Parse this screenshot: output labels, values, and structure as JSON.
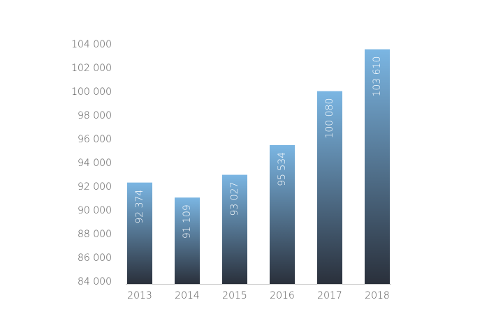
{
  "chart_data": {
    "type": "bar",
    "categories": [
      "2013",
      "2014",
      "2015",
      "2016",
      "2017",
      "2018"
    ],
    "values": [
      92374,
      91109,
      93027,
      95534,
      100080,
      103610
    ],
    "value_labels": [
      "92 374",
      "91 109",
      "93 027",
      "95 534",
      "100 080",
      "103 610"
    ],
    "gradient": [
      "#7bb6e3",
      "#2a303b"
    ],
    "ylim": [
      84000,
      104000
    ],
    "yticks": [
      {
        "value": 84000,
        "label": "84 000"
      },
      {
        "value": 86000,
        "label": "86 000"
      },
      {
        "value": 88000,
        "label": "88 000"
      },
      {
        "value": 90000,
        "label": "90 000"
      },
      {
        "value": 92000,
        "label": "92 000"
      },
      {
        "value": 94000,
        "label": "94 000"
      },
      {
        "value": 96000,
        "label": "96 000"
      },
      {
        "value": 98000,
        "label": "98 000"
      },
      {
        "value": 100000,
        "label": "100 000"
      },
      {
        "value": 102000,
        "label": "102 000"
      },
      {
        "value": 104000,
        "label": "104 000"
      }
    ],
    "grid": false
  }
}
